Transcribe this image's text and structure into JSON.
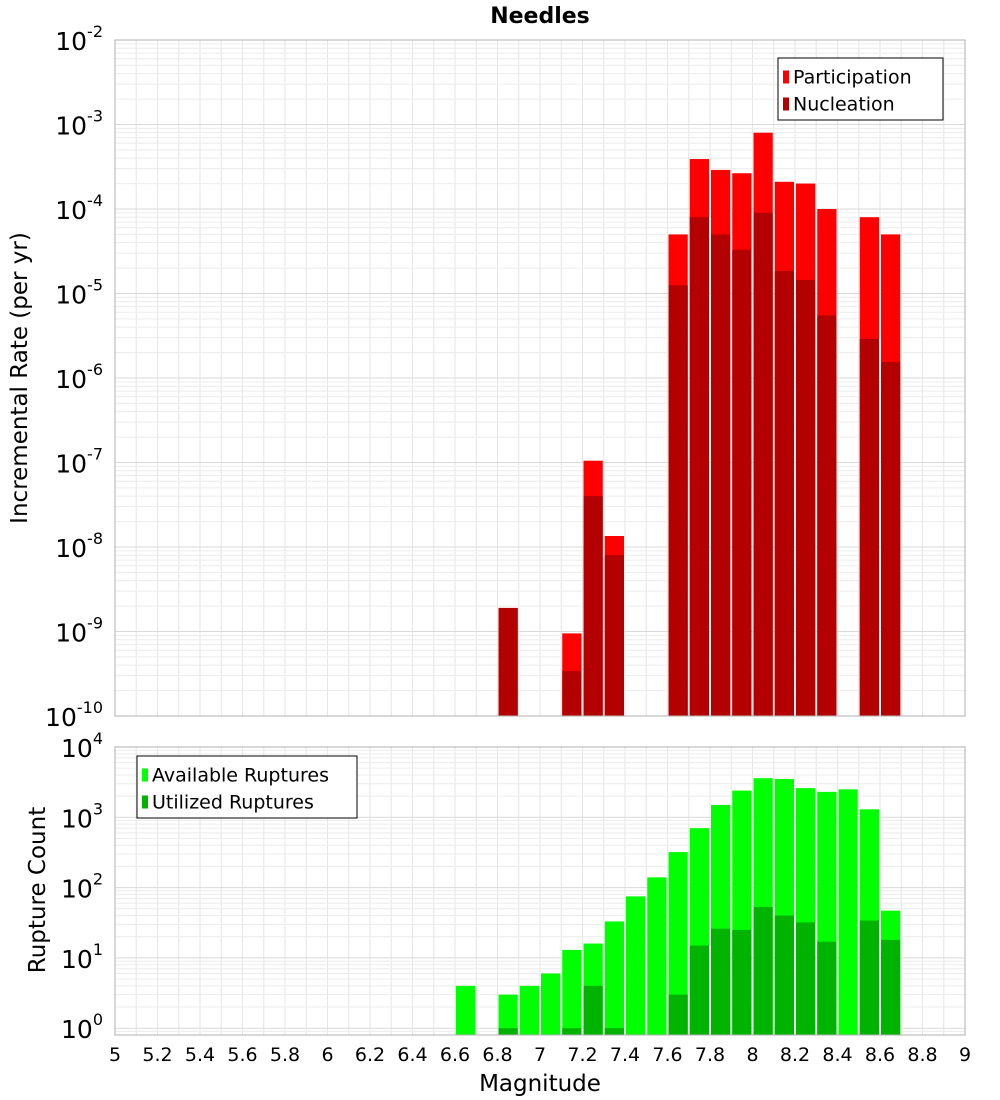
{
  "chart_data": [
    {
      "type": "bar",
      "title": "Needles",
      "xlabel": "",
      "ylabel": "Incremental Rate (per yr)",
      "yscale": "log",
      "ylim": [
        1e-10,
        0.01
      ],
      "xlim": [
        5,
        9
      ],
      "grid": true,
      "legend": {
        "placement": "top-right",
        "entries": [
          {
            "name": "Participation",
            "color": "#ff0000"
          },
          {
            "name": "Nucleation",
            "color": "#b30000"
          }
        ]
      },
      "x": [
        6.85,
        7.15,
        7.25,
        7.35,
        7.65,
        7.75,
        7.85,
        7.95,
        8.05,
        8.15,
        8.25,
        8.35,
        8.55,
        8.65
      ],
      "series": [
        {
          "name": "Participation",
          "color": "#ff0000",
          "values": [
            1.9e-09,
            9.5e-10,
            1.05e-07,
            1.35e-08,
            5e-05,
            0.00039,
            0.00029,
            0.000265,
            0.0008,
            0.00021,
            0.0002,
            0.0001,
            8e-05,
            5e-05
          ]
        },
        {
          "name": "Nucleation",
          "color": "#b30000",
          "values": [
            1.9e-09,
            3.4e-10,
            4e-08,
            8e-09,
            1.25e-05,
            8e-05,
            5e-05,
            3.3e-05,
            9e-05,
            1.85e-05,
            1.45e-05,
            5.5e-06,
            2.9e-06,
            1.55e-06
          ]
        }
      ],
      "y_ticks": [
        "10^-10",
        "10^-9",
        "10^-8",
        "10^-7",
        "10^-6",
        "10^-5",
        "10^-4",
        "10^-3",
        "10^-2"
      ]
    },
    {
      "type": "bar",
      "title": "",
      "xlabel": "Magnitude",
      "ylabel": "Rupture Count",
      "yscale": "log",
      "ylim": [
        0.8,
        10000
      ],
      "xlim": [
        5,
        9
      ],
      "grid": true,
      "legend": {
        "placement": "top-left",
        "entries": [
          {
            "name": "Available Ruptures",
            "color": "#00ff00"
          },
          {
            "name": "Utilized Ruptures",
            "color": "#00b300"
          }
        ]
      },
      "x": [
        6.65,
        6.85,
        6.95,
        7.05,
        7.15,
        7.25,
        7.35,
        7.45,
        7.55,
        7.65,
        7.75,
        7.85,
        7.95,
        8.05,
        8.15,
        8.25,
        8.35,
        8.45,
        8.55,
        8.65
      ],
      "series": [
        {
          "name": "Available Ruptures",
          "color": "#00ff00",
          "values": [
            4,
            3,
            4,
            6,
            13,
            16,
            33,
            75,
            140,
            320,
            700,
            1500,
            2400,
            3600,
            3500,
            2600,
            2300,
            2500,
            1300,
            47
          ]
        },
        {
          "name": "Utilized Ruptures",
          "color": "#00b300",
          "values": [
            0,
            1,
            0,
            0,
            1,
            4,
            1,
            0,
            0,
            3,
            15,
            26,
            25,
            53,
            40,
            32,
            17,
            0,
            34,
            18
          ]
        }
      ],
      "y_ticks": [
        "10^0",
        "10^1",
        "10^2",
        "10^3",
        "10^4"
      ],
      "x_ticks": [
        "5",
        "5.2",
        "5.4",
        "5.6",
        "5.8",
        "6",
        "6.2",
        "6.4",
        "6.6",
        "6.8",
        "7",
        "7.2",
        "7.4",
        "7.6",
        "7.8",
        "8",
        "8.2",
        "8.4",
        "8.6",
        "8.8",
        "9"
      ]
    }
  ]
}
